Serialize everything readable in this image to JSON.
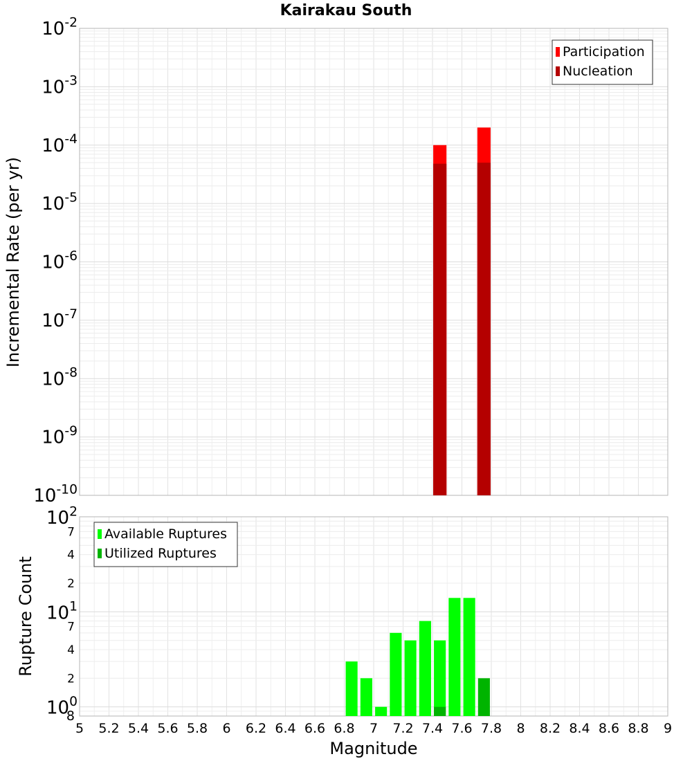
{
  "chart_data": [
    {
      "type": "bar",
      "title": "Kairakau South",
      "ylabel": "Incremental Rate (per yr)",
      "xlabel": "",
      "y_scale": "log",
      "ylim": [
        1e-10,
        0.01
      ],
      "xlim": [
        5,
        9
      ],
      "grid": true,
      "legend_position": "top-right",
      "y_ticks": [
        {
          "base": "10",
          "exp": "-10"
        },
        {
          "base": "10",
          "exp": "-9"
        },
        {
          "base": "10",
          "exp": "-8"
        },
        {
          "base": "10",
          "exp": "-7"
        },
        {
          "base": "10",
          "exp": "-6"
        },
        {
          "base": "10",
          "exp": "-5"
        },
        {
          "base": "10",
          "exp": "-4"
        },
        {
          "base": "10",
          "exp": "-3"
        },
        {
          "base": "10",
          "exp": "-2"
        }
      ],
      "bar_width": 0.09,
      "series": [
        {
          "name": "Participation",
          "color": "#ff0000",
          "points": [
            {
              "x": 7.45,
              "y": 0.0001
            },
            {
              "x": 7.75,
              "y": 0.0002
            }
          ]
        },
        {
          "name": "Nucleation",
          "color": "#b40000",
          "points": [
            {
              "x": 7.45,
              "y": 4.8e-05
            },
            {
              "x": 7.75,
              "y": 5e-05
            }
          ]
        }
      ]
    },
    {
      "type": "bar",
      "title": "",
      "ylabel": "Rupture Count",
      "xlabel": "Magnitude",
      "y_scale": "log",
      "ylim": [
        0.8,
        100
      ],
      "xlim": [
        5,
        9
      ],
      "grid": true,
      "legend_position": "top-left",
      "x_ticks": [
        "5",
        "5.2",
        "5.4",
        "5.6",
        "5.8",
        "6",
        "6.2",
        "6.4",
        "6.6",
        "6.8",
        "7",
        "7.2",
        "7.4",
        "7.6",
        "7.8",
        "8",
        "8.2",
        "8.4",
        "8.6",
        "8.8",
        "9"
      ],
      "y_ticks": [
        {
          "value": 1,
          "base": "10",
          "exp": "0"
        },
        {
          "value": 2,
          "label": "2"
        },
        {
          "value": 4,
          "label": "4"
        },
        {
          "value": 7,
          "label": "7"
        },
        {
          "value": 10,
          "base": "10",
          "exp": "1"
        },
        {
          "value": 20,
          "label": "2"
        },
        {
          "value": 40,
          "label": "4"
        },
        {
          "value": 70,
          "label": "7"
        },
        {
          "value": 100,
          "base": "10",
          "exp": "2"
        }
      ],
      "extra_bottom_label": "8",
      "bar_width": 0.09,
      "series": [
        {
          "name": "Available Ruptures",
          "color": "#00ff00",
          "points": [
            {
              "x": 6.85,
              "y": 3
            },
            {
              "x": 6.95,
              "y": 2
            },
            {
              "x": 7.05,
              "y": 1
            },
            {
              "x": 7.15,
              "y": 6
            },
            {
              "x": 7.25,
              "y": 5
            },
            {
              "x": 7.35,
              "y": 8
            },
            {
              "x": 7.45,
              "y": 5
            },
            {
              "x": 7.55,
              "y": 14
            },
            {
              "x": 7.65,
              "y": 14
            }
          ]
        },
        {
          "name": "Utilized Ruptures",
          "color": "#00b400",
          "points": [
            {
              "x": 7.45,
              "y": 1
            },
            {
              "x": 7.75,
              "y": 2
            }
          ]
        }
      ]
    }
  ]
}
